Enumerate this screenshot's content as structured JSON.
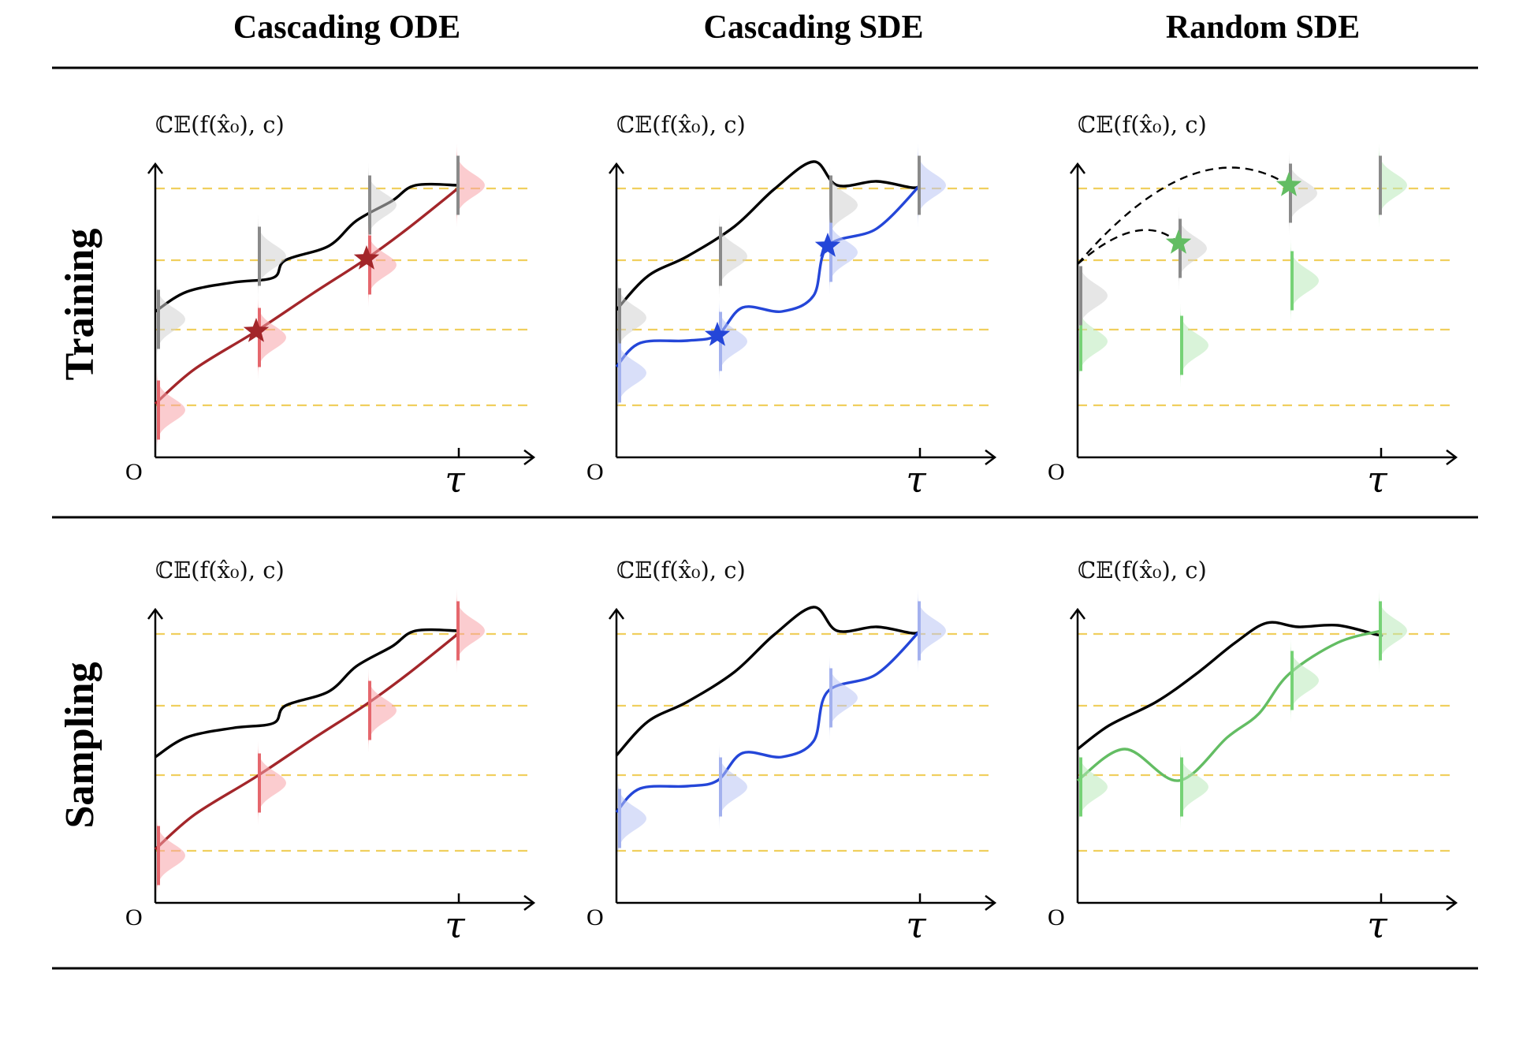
{
  "figure": {
    "columns": [
      {
        "key": "ode",
        "title": "Cascading ODE",
        "color": "#a3262a",
        "light": "#f8a3a7",
        "bar": "#e5676d"
      },
      {
        "key": "sde",
        "title": "Cascading SDE",
        "color": "#2446d8",
        "light": "#b9c4f4",
        "bar": "#a3b1ee"
      },
      {
        "key": "rsde",
        "title": "Random SDE",
        "color": "#63bd63",
        "light": "#b9e9b9",
        "bar": "#76d276"
      }
    ],
    "rows": [
      {
        "key": "training",
        "title": "Training"
      },
      {
        "key": "sampling",
        "title": "Sampling"
      }
    ],
    "y_axis_label": "ℂ𝔼(f(x̂₀), c)",
    "origin_label": "O",
    "tau_label": "τ",
    "colors": {
      "gray_bar": "#8a8a8a",
      "gray_fill": "#d2d2d2",
      "guide": "#f0cf5e",
      "ref": "#000000"
    }
  }
}
